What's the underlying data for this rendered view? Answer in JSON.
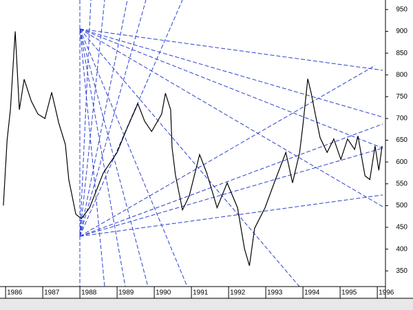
{
  "chart_data": {
    "type": "line",
    "color": "#000000",
    "x": [
      1985.94,
      1986.04,
      1986.13,
      1986.26,
      1986.37,
      1986.5,
      1986.69,
      1986.87,
      1987.06,
      1987.24,
      1987.43,
      1987.61,
      1987.7,
      1987.89,
      1988.04,
      1988.26,
      1988.63,
      1989.0,
      1989.28,
      1989.56,
      1989.74,
      1989.93,
      1990.2,
      1990.3,
      1990.44,
      1990.48,
      1990.57,
      1990.76,
      1990.94,
      1991.22,
      1991.41,
      1991.69,
      1991.96,
      1992.24,
      1992.43,
      1992.56,
      1992.7,
      1992.98,
      1993.26,
      1993.54,
      1993.72,
      1993.91,
      1994.0,
      1994.13,
      1994.22,
      1994.33,
      1994.46,
      1994.65,
      1994.83,
      1995.02,
      1995.2,
      1995.39,
      1995.48,
      1995.67,
      1995.8,
      1995.94,
      1996.04,
      1996.13
    ],
    "values": [
      500,
      650,
      720,
      900,
      720,
      790,
      740,
      710,
      700,
      760,
      690,
      640,
      560,
      480,
      470,
      495,
      575,
      622,
      680,
      734,
      694,
      670,
      710,
      758,
      720,
      633,
      570,
      490,
      522,
      617,
      575,
      495,
      552,
      495,
      400,
      362,
      448,
      495,
      560,
      622,
      552,
      622,
      685,
      791,
      759,
      711,
      656,
      622,
      653,
      606,
      653,
      629,
      660,
      568,
      560,
      637,
      581,
      637
    ],
    "xlim": [
      1985.85,
      1996.22
    ],
    "ylim": [
      314,
      972
    ],
    "xticks": [
      1986,
      1987,
      1988,
      1989,
      1990,
      1991,
      1992,
      1993,
      1994,
      1995,
      1996
    ],
    "yticks": [
      350,
      400,
      450,
      500,
      550,
      600,
      650,
      700,
      750,
      800,
      850,
      900,
      950
    ]
  }
}
